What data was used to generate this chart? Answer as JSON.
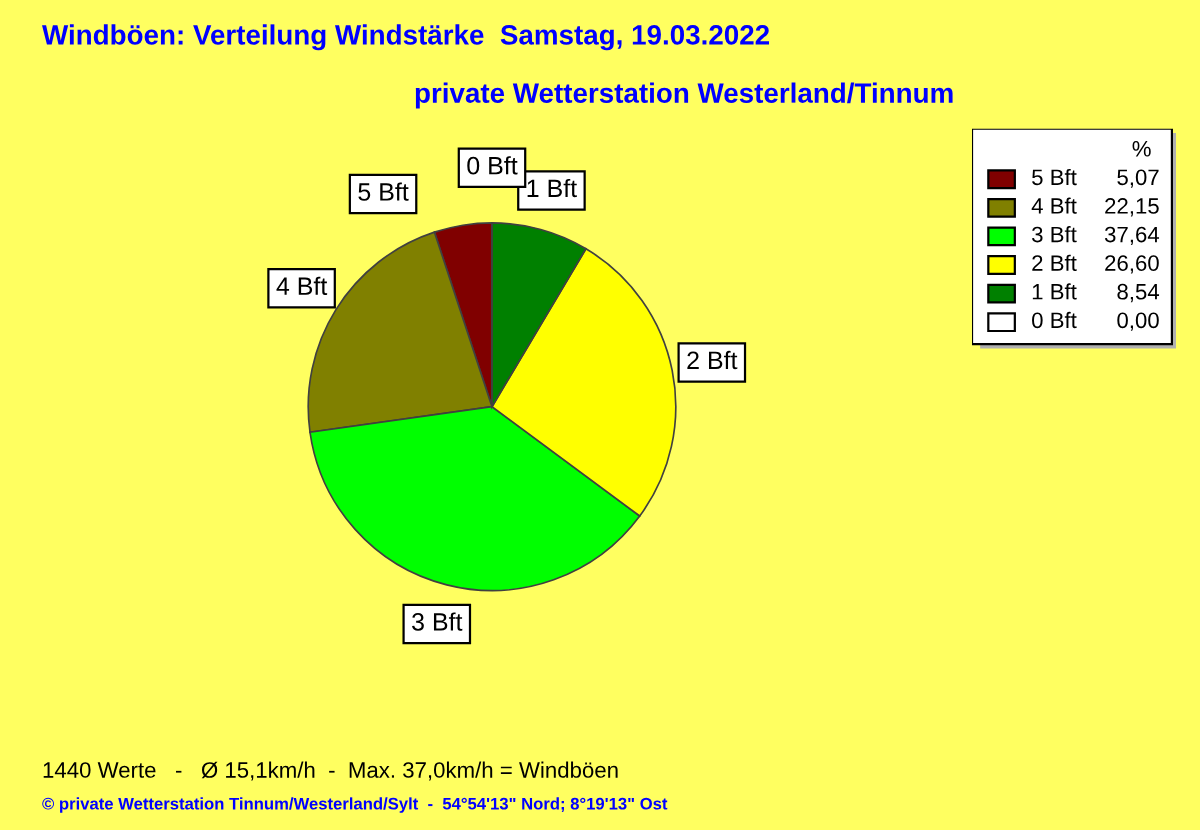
{
  "chart_data": {
    "type": "pie",
    "title": "Windböen: Verteilung Windstärke  Samstag, 19.03.2022",
    "subtitle": "private Wetterstation Westerland/Tinnum",
    "legend_title": "%",
    "categories": [
      "5 Bft",
      "4 Bft",
      "3 Bft",
      "2 Bft",
      "1 Bft",
      "0 Bft"
    ],
    "values": [
      5.07,
      22.15,
      37.64,
      26.6,
      8.54,
      0.0
    ],
    "value_labels": [
      "5,07",
      "22,15",
      "37,64",
      "26,60",
      "8,54",
      "0,00"
    ],
    "colors": [
      "#800000",
      "#808000",
      "#00ff00",
      "#ffff00",
      "#008000",
      "#ffffff"
    ],
    "legend": "top right",
    "annotations": [
      "1440 Werte   -   Ø 15,1km/h  -  Max. 37,0km/h = Windböen",
      "© private Wetterstation Tinnum/Westerland/Sylt  -  54°54'13\" Nord; 8°19'13\" Ost"
    ]
  }
}
